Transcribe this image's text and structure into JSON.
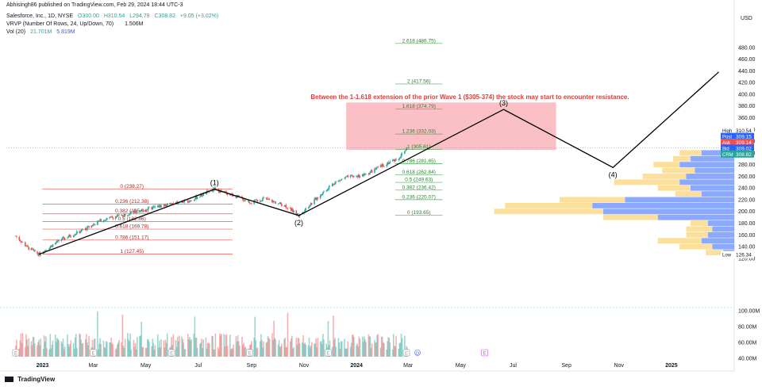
{
  "header": {
    "publisher": "Abhisingh86 published on TradingView.com, Feb 29, 2024 18:44 UTC-3",
    "symbol_line": "Salesforce, Inc., 1D, NYSE",
    "ohlc": {
      "o": "O300.00",
      "h": "H310.54",
      "l": "L294.79",
      "c": "C308.82",
      "chg": "+9.05 (+3.02%)"
    },
    "vrvp_line": "VRVP (Number Of Rows, 24, Up/Down, 70)",
    "vrvp_value": "1.506M",
    "vol_line": "Vol (20)",
    "vol_values": [
      "21.701M",
      "5.819M"
    ],
    "currency": "USD"
  },
  "footer": {
    "logo": "TradingView"
  },
  "colors": {
    "up": "#26a69a",
    "down": "#ef5350",
    "fib_line": "#ef5350",
    "ext_line": "#4caf50",
    "zone": "#f8a5ae",
    "annotation": "#e03c3c",
    "vp_up": "#2962ff",
    "vp_down": "#f7c548"
  },
  "annotation": "Between the 1-1.618 extension of the prior Wave 1 ($305-374) the stock may start to encounter resistance.",
  "chart_data": {
    "type": "candlestick",
    "ylim": [
      40,
      500
    ],
    "y_ticks": [
      480,
      460,
      440,
      420,
      400,
      380,
      360,
      340,
      320,
      300,
      280,
      260,
      240,
      220,
      200,
      180,
      160,
      140,
      120,
      100,
      80,
      60,
      40
    ],
    "volume_ticks": [
      "100.00M",
      "80.00M",
      "60.00M",
      "40.00M"
    ],
    "x_ticks": [
      "2023",
      "Mar",
      "May",
      "Jul",
      "Sep",
      "Nov",
      "2024",
      "Mar",
      "May",
      "Jul",
      "Sep",
      "Nov",
      "2025"
    ],
    "price_anchors": [
      [
        "2022-12-01",
        158
      ],
      [
        "2022-12-15",
        138
      ],
      [
        "2022-12-28",
        127
      ],
      [
        "2023-01-20",
        150
      ],
      [
        "2023-02-20",
        170
      ],
      [
        "2023-03-10",
        185
      ],
      [
        "2023-04-15",
        198
      ],
      [
        "2023-05-20",
        210
      ],
      [
        "2023-06-20",
        218
      ],
      [
        "2023-07-20",
        238
      ],
      [
        "2023-08-10",
        228
      ],
      [
        "2023-09-01",
        215
      ],
      [
        "2023-09-15",
        222
      ],
      [
        "2023-10-10",
        210
      ],
      [
        "2023-10-26",
        193
      ],
      [
        "2023-11-15",
        222
      ],
      [
        "2023-12-05",
        248
      ],
      [
        "2023-12-20",
        258
      ],
      [
        "2024-01-10",
        262
      ],
      [
        "2024-02-05",
        282
      ],
      [
        "2024-02-20",
        292
      ],
      [
        "2024-02-29",
        309
      ]
    ],
    "fib_retracement": {
      "levels": [
        {
          "label": "0 (238.27)",
          "price": 238.27
        },
        {
          "label": "0.236 (212.38)",
          "price": 212.38
        },
        {
          "label": "0.382 (195.94)",
          "price": 195.94
        },
        {
          "label": "0.5 (182.86)",
          "price": 182.86
        },
        {
          "label": "0.618 (169.78)",
          "price": 169.78
        },
        {
          "label": "0.786 (151.17)",
          "price": 151.17
        },
        {
          "label": "1 (127.45)",
          "price": 127.45
        }
      ],
      "from": "2023-01-01",
      "to": "2023-08-10"
    },
    "fib_extension": {
      "levels": [
        {
          "label": "2.618 (486.75)",
          "price": 486.75
        },
        {
          "label": "2 (417.56)",
          "price": 417.56
        },
        {
          "label": "1.618 (374.79)",
          "price": 374.79
        },
        {
          "label": "1.236 (332.03)",
          "price": 332.03
        },
        {
          "label": "1 (305.61)",
          "price": 305.61
        },
        {
          "label": "0.786 (281.65)",
          "price": 281.65
        },
        {
          "label": "0.618 (262.84)",
          "price": 262.84
        },
        {
          "label": "0.5 (249.63)",
          "price": 249.63
        },
        {
          "label": "0.382 (236.42)",
          "price": 236.42
        },
        {
          "label": "0.236 (220.07)",
          "price": 220.07
        },
        {
          "label": "0 (193.65)",
          "price": 193.65
        }
      ],
      "from": "2024-02-15",
      "to": "2024-04-10"
    },
    "resistance_zone": {
      "from": "2023-12-20",
      "to": "2024-08-20",
      "low": 305,
      "high": 386
    },
    "waves": [
      {
        "date": "2022-12-28",
        "price": 127,
        "label": ""
      },
      {
        "date": "2023-07-20",
        "price": 238,
        "label": "(1)"
      },
      {
        "date": "2023-10-26",
        "price": 193,
        "label": "(2)"
      },
      {
        "date": "2024-06-20",
        "price": 374,
        "label": "(3)"
      },
      {
        "date": "2024-10-25",
        "price": 275,
        "label": "(4)"
      },
      {
        "date": "2025-02-25",
        "price": 438,
        "label": ""
      }
    ],
    "price_labels": [
      {
        "tag": "High",
        "value": "310.54",
        "price": 338,
        "bg": "#ffffff",
        "fg": "#131722"
      },
      {
        "tag": "Post",
        "value": "309.15",
        "price": 328,
        "bg": "#2962ff",
        "fg": "#ffffff"
      },
      {
        "tag": "Ask",
        "value": "309.14",
        "price": 318,
        "bg": "#ef5350",
        "fg": "#ffffff"
      },
      {
        "tag": "Bid",
        "value": "309.02",
        "price": 308,
        "bg": "#2962ff",
        "fg": "#ffffff"
      },
      {
        "tag": "CRM",
        "value": "308.82",
        "price": 298,
        "bg": "#26a69a",
        "fg": "#ffffff"
      },
      {
        "tag": "Low",
        "value": "126.34",
        "price": 126.34,
        "bg": "#ffffff",
        "fg": "#131722"
      }
    ],
    "volume_profile": [
      {
        "price": 300,
        "up": 0.15,
        "down": 0.1
      },
      {
        "price": 290,
        "up": 0.2,
        "down": 0.08
      },
      {
        "price": 280,
        "up": 0.25,
        "down": 0.12
      },
      {
        "price": 270,
        "up": 0.18,
        "down": 0.15
      },
      {
        "price": 260,
        "up": 0.22,
        "down": 0.2
      },
      {
        "price": 250,
        "up": 0.25,
        "down": 0.3
      },
      {
        "price": 240,
        "up": 0.2,
        "down": 0.15
      },
      {
        "price": 230,
        "up": 0.15,
        "down": 0.12
      },
      {
        "price": 220,
        "up": 0.5,
        "down": 0.3
      },
      {
        "price": 210,
        "up": 0.65,
        "down": 0.4
      },
      {
        "price": 200,
        "up": 0.6,
        "down": 0.5
      },
      {
        "price": 190,
        "up": 0.35,
        "down": 0.25
      },
      {
        "price": 180,
        "up": 0.12,
        "down": 0.08
      },
      {
        "price": 170,
        "up": 0.1,
        "down": 0.12
      },
      {
        "price": 160,
        "up": 0.12,
        "down": 0.1
      },
      {
        "price": 150,
        "up": 0.15,
        "down": 0.2
      },
      {
        "price": 140,
        "up": 0.1,
        "down": 0.15
      },
      {
        "price": 130,
        "up": 0.05,
        "down": 0.08
      }
    ]
  }
}
